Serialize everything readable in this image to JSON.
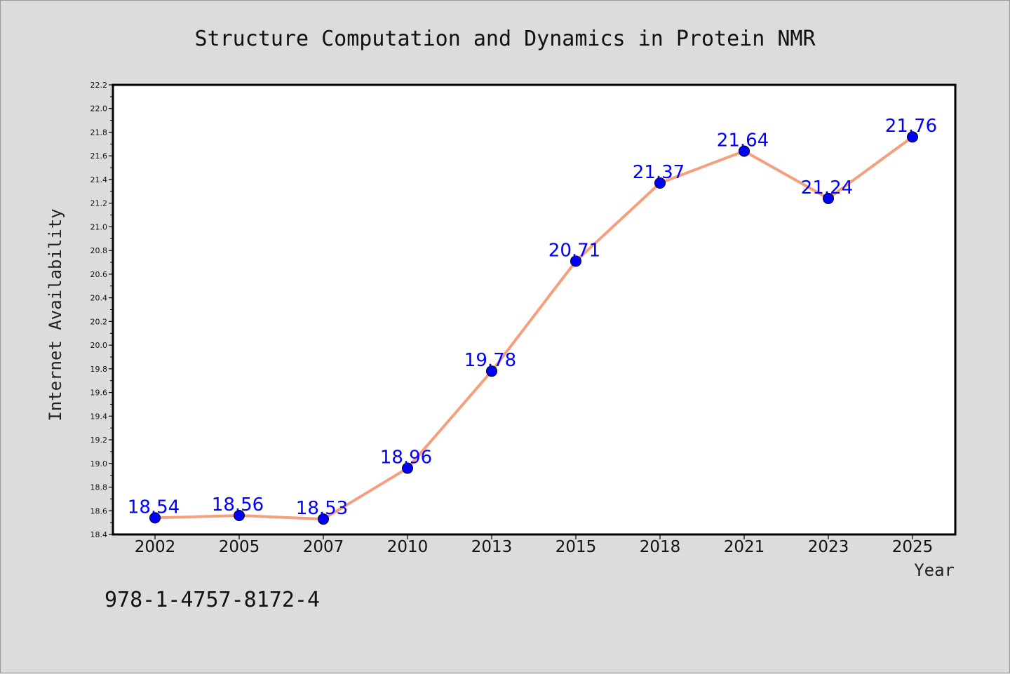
{
  "chart_data": {
    "type": "line",
    "title": "Structure Computation and Dynamics in Protein NMR",
    "xlabel": "Year",
    "ylabel": "Internet Availability",
    "categories": [
      "2002",
      "2005",
      "2007",
      "2010",
      "2013",
      "2015",
      "2018",
      "2021",
      "2023",
      "2025"
    ],
    "series": [
      {
        "values": [
          18.54,
          18.56,
          18.53,
          18.96,
          19.78,
          20.71,
          21.37,
          21.64,
          21.24,
          21.76
        ],
        "data_labels": [
          "18.54",
          "18.56",
          "18.53",
          "18.96",
          "19.78",
          "20.71",
          "21.37",
          "21.64",
          "21.24",
          "21.76"
        ]
      }
    ],
    "ylim": [
      18.4,
      22.2
    ],
    "yticks": [
      "18.4",
      "18.6",
      "18.8",
      "19.0",
      "19.2",
      "19.4",
      "19.6",
      "19.8",
      "20.0",
      "20.2",
      "20.4",
      "20.6",
      "20.8",
      "21.0",
      "21.2",
      "21.4",
      "21.6",
      "21.8",
      "22.0",
      "22.2"
    ],
    "grid": false,
    "legend": "none",
    "colors": {
      "line": "#f4a07e",
      "marker": "#0000ff",
      "data_label": "#0000ff",
      "plot_background": "#ffffff",
      "figure_background": "#dcdcdc"
    }
  },
  "footer": {
    "isbn": "978-1-4757-8172-4"
  }
}
